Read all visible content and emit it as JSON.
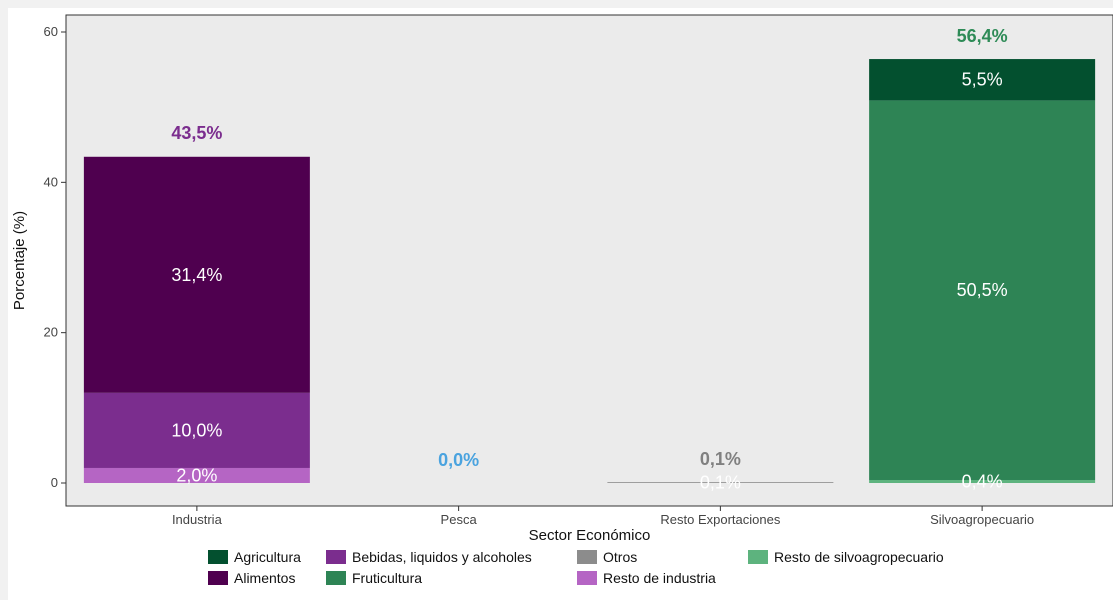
{
  "chart_data": {
    "type": "bar",
    "stacked": true,
    "xlabel": "Sector Económico",
    "ylabel": "Porcentaje (%)",
    "ylim": [
      0,
      62
    ],
    "yticks": [
      0,
      20,
      40,
      60
    ],
    "grid": false,
    "legend_position": "bottom",
    "categories": [
      "Industria",
      "Pesca",
      "Resto Exportaciones",
      "Silvoagropecuario"
    ],
    "totals": [
      {
        "category": "Industria",
        "value": 43.5,
        "label": "43,5%",
        "color": "#7b2d8e"
      },
      {
        "category": "Pesca",
        "value": 0.0,
        "label": "0,0%",
        "color": "#4aa3df"
      },
      {
        "category": "Resto Exportaciones",
        "value": 0.1,
        "label": "0,1%",
        "color": "#808080"
      },
      {
        "category": "Silvoagropecuario",
        "value": 56.4,
        "label": "56,4%",
        "color": "#2e8b57"
      }
    ],
    "segments": [
      {
        "category": "Industria",
        "series": "Resto de industria",
        "value": 2.0,
        "label": "2,0%"
      },
      {
        "category": "Industria",
        "series": "Bebidas, liquidos y alcoholes",
        "value": 10.0,
        "label": "10,0%"
      },
      {
        "category": "Industria",
        "series": "Alimentos",
        "value": 31.4,
        "label": "31,4%"
      },
      {
        "category": "Resto Exportaciones",
        "series": "Otros",
        "value": 0.1,
        "label": "0,1%"
      },
      {
        "category": "Silvoagropecuario",
        "series": "Resto de silvoagropecuario",
        "value": 0.4,
        "label": "0,4%"
      },
      {
        "category": "Silvoagropecuario",
        "series": "Fruticultura",
        "value": 50.5,
        "label": "50,5%"
      },
      {
        "category": "Silvoagropecuario",
        "series": "Agricultura",
        "value": 5.5,
        "label": "5,5%"
      }
    ],
    "series_colors": {
      "Agricultura": "#03502f",
      "Alimentos": "#4f004f",
      "Bebidas, liquidos y alcoholes": "#7b2d8e",
      "Fruticultura": "#2e8455",
      "Otros": "#8c8c8c",
      "Resto de industria": "#b565c4",
      "Resto de silvoagropecuario": "#5db37e"
    },
    "legend": [
      {
        "name": "Agricultura",
        "color": "#03502f"
      },
      {
        "name": "Bebidas, liquidos y alcoholes",
        "color": "#7b2d8e"
      },
      {
        "name": "Otros",
        "color": "#8c8c8c"
      },
      {
        "name": "Resto de silvoagropecuario",
        "color": "#5db37e"
      },
      {
        "name": "Alimentos",
        "color": "#4f004f"
      },
      {
        "name": "Fruticultura",
        "color": "#2e8455"
      },
      {
        "name": "Resto de industria",
        "color": "#b565c4"
      }
    ],
    "panel_background": "#ebebeb"
  }
}
